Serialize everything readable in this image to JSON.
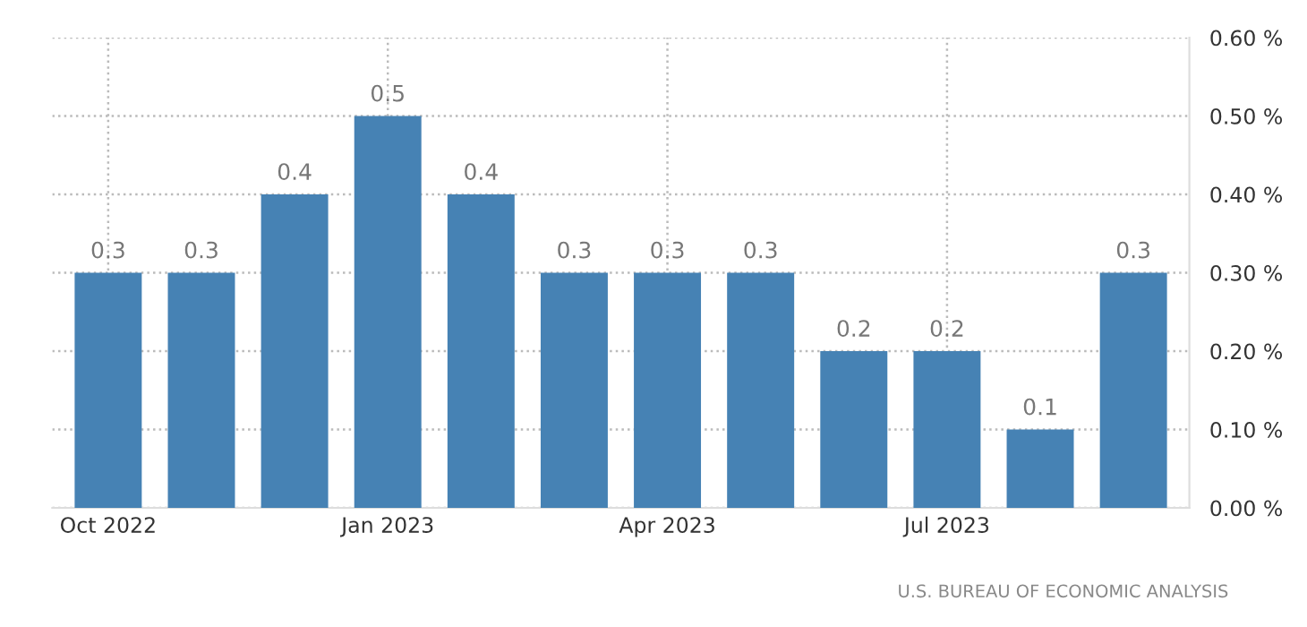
{
  "chart_data": {
    "type": "bar",
    "categories": [
      "Oct 2022",
      null,
      null,
      "Jan 2023",
      null,
      null,
      "Apr 2023",
      null,
      null,
      "Jul 2023",
      null,
      null
    ],
    "values": [
      0.3,
      0.3,
      0.4,
      0.5,
      0.4,
      0.3,
      0.3,
      0.3,
      0.2,
      0.2,
      0.1,
      0.3
    ],
    "color": "#4682b4",
    "ylim": [
      0,
      0.6
    ],
    "yticks": [
      {
        "value": 0,
        "label": "0.00 %"
      },
      {
        "value": 0.1,
        "label": "0.10 %"
      },
      {
        "value": 0.2,
        "label": "0.20 %"
      },
      {
        "value": 0.3,
        "label": "0.30 %"
      },
      {
        "value": 0.4,
        "label": "0.40 %"
      },
      {
        "value": 0.5,
        "label": "0.50 %"
      },
      {
        "value": 0.6,
        "label": "0.60 %"
      }
    ],
    "data_labels": true,
    "grid": true,
    "legend": false,
    "annotations": [
      "U.S. BUREAU OF ECONOMIC ANALYSIS"
    ]
  }
}
